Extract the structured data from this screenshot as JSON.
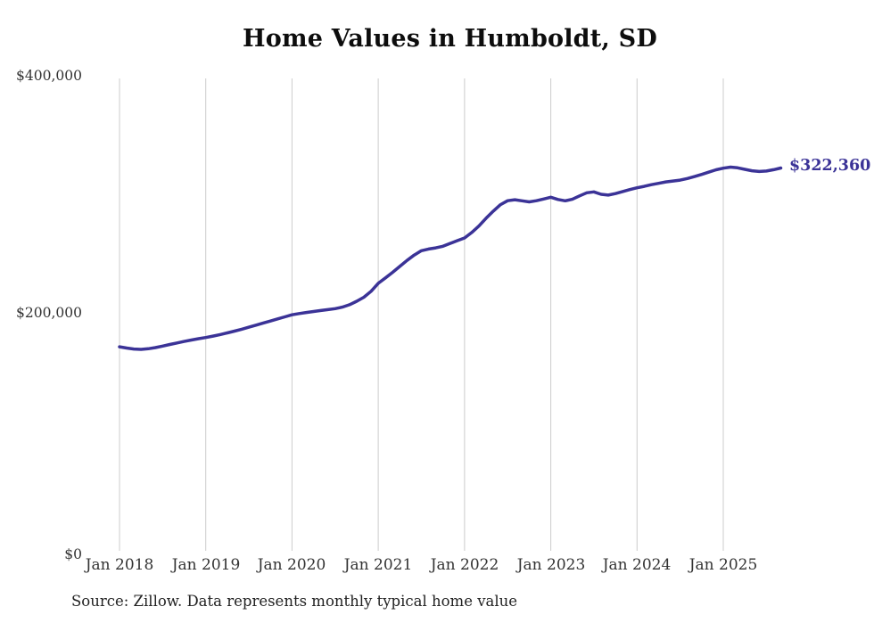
{
  "page": {
    "background": "#ffffff"
  },
  "chart_data": {
    "type": "line",
    "title": "Home Values in Humboldt, SD",
    "frequency": "monthly",
    "x_start": "Jan 2018",
    "x_end": "Sep 2025",
    "x_ticks": [
      "Jan 2018",
      "Jan 2019",
      "Jan 2020",
      "Jan 2021",
      "Jan 2022",
      "Jan 2023",
      "Jan 2024",
      "Jan 2025"
    ],
    "y_ticks": [
      "$0",
      "$200,000",
      "$400,000"
    ],
    "ylim": [
      0,
      400000
    ],
    "grid": "vertical-only",
    "legend": "none",
    "line_color": "#3b3397",
    "grid_color": "#cccccc",
    "end_label": "$322,360",
    "latest_value": 322360,
    "series": [
      {
        "name": "Typical home value",
        "values": [
          171800,
          170700,
          169900,
          169600,
          170100,
          171100,
          172400,
          173700,
          175000,
          176300,
          177500,
          178600,
          179600,
          180800,
          182100,
          183500,
          185000,
          186600,
          188300,
          190000,
          191800,
          193500,
          195300,
          197000,
          198700,
          199800,
          200700,
          201500,
          202300,
          203100,
          203900,
          205200,
          207200,
          210100,
          213500,
          218500,
          225200,
          229800,
          234500,
          239500,
          244500,
          249000,
          252700,
          254100,
          255100,
          256400,
          258800,
          261200,
          263400,
          268000,
          273500,
          280000,
          286000,
          291500,
          294800,
          295600,
          294700,
          293800,
          294800,
          296200,
          297700,
          295800,
          294700,
          296000,
          298800,
          301500,
          302200,
          300200,
          299500,
          300800,
          302500,
          304200,
          305700,
          306900,
          308300,
          309400,
          310600,
          311400,
          312100,
          313500,
          315100,
          316900,
          318900,
          320800,
          322200,
          323100,
          322500,
          321200,
          320000,
          319400,
          319800,
          320900,
          322360
        ]
      }
    ]
  },
  "footer": {
    "source": "Source: Zillow. Data represents monthly typical home value"
  }
}
